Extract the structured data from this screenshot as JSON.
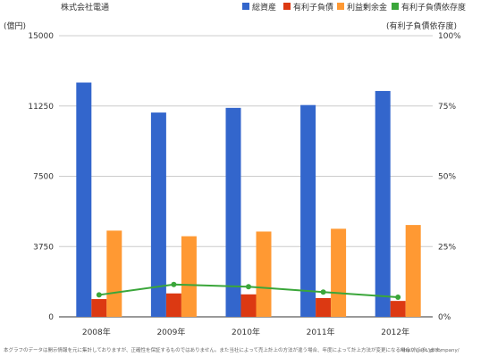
{
  "header": {
    "company": "株式会社電通"
  },
  "axes": {
    "left_unit": "(億円)",
    "right_unit": "(有利子負債依存度)"
  },
  "footer": {
    "note": "本グラフのデータは開示情報を元に集計しておりますが、正確性を保証するものではありません。また当社によって売上計上の方法が違う場合、年度によって計上方法が変更になる場合がございます。",
    "url": "http://swot.jp/company/"
  },
  "chart_data": {
    "type": "bar",
    "categories": [
      "2008年",
      "2009年",
      "2010年",
      "2011年",
      "2012年"
    ],
    "series": [
      {
        "name": "総資産",
        "type": "bar",
        "axis": "left",
        "color": "#3366cc",
        "values": [
          12500,
          10900,
          11150,
          11300,
          12050
        ]
      },
      {
        "name": "有利子負債",
        "type": "bar",
        "axis": "left",
        "color": "#dc3912",
        "values": [
          950,
          1250,
          1200,
          1000,
          850
        ]
      },
      {
        "name": "利益剰余金",
        "type": "bar",
        "axis": "left",
        "color": "#ff9933",
        "values": [
          4600,
          4300,
          4550,
          4700,
          4900
        ]
      },
      {
        "name": "有利子負債依存度",
        "type": "line",
        "axis": "right",
        "color": "#3aa63a",
        "values": [
          7.8,
          11.5,
          10.7,
          8.8,
          7.0
        ]
      }
    ],
    "y_left": {
      "ylim": [
        0,
        15000
      ],
      "ticks": [
        "0",
        "3750",
        "7500",
        "11250",
        "15000"
      ]
    },
    "y_right": {
      "ylim": [
        0,
        100
      ],
      "ticks": [
        "0%",
        "25%",
        "50%",
        "75%",
        "100%"
      ]
    },
    "grid": true,
    "legend": "top-right"
  }
}
